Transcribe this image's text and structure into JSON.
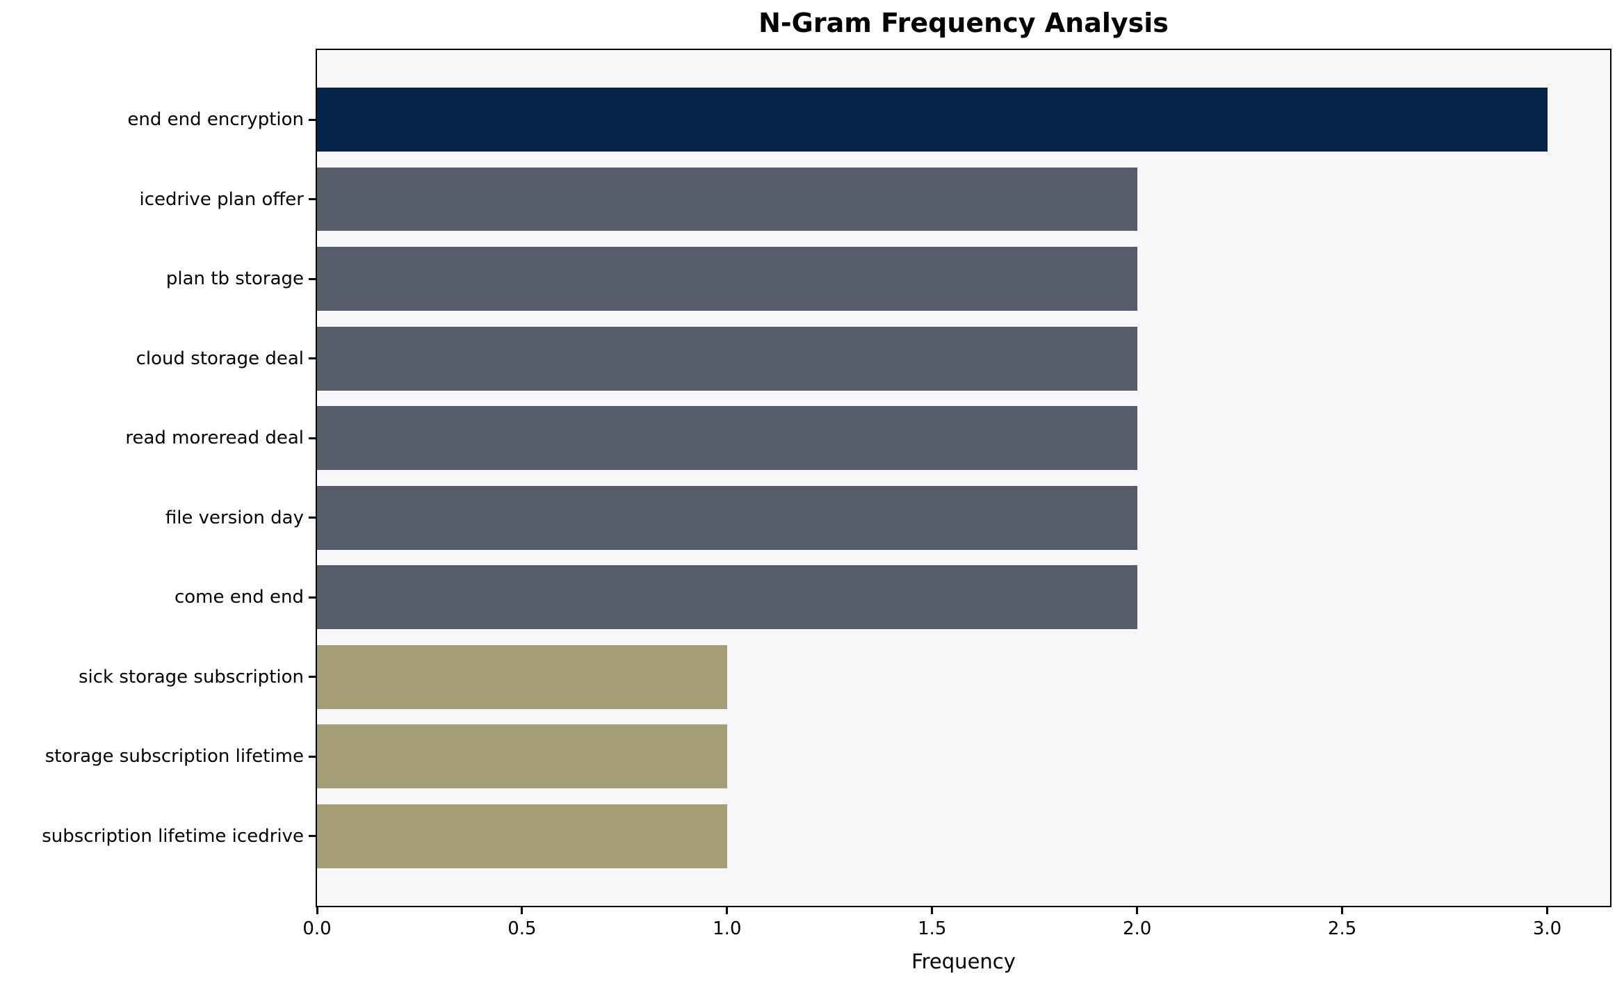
{
  "chart_data": {
    "type": "bar",
    "orientation": "horizontal",
    "title": "N-Gram Frequency Analysis",
    "xlabel": "Frequency",
    "ylabel": "",
    "categories": [
      "end end encryption",
      "icedrive plan offer",
      "plan tb storage",
      "cloud storage deal",
      "read moreread deal",
      "file version day",
      "come end end",
      "sick storage subscription",
      "storage subscription lifetime",
      "subscription lifetime icedrive"
    ],
    "values": [
      3,
      2,
      2,
      2,
      2,
      2,
      2,
      1,
      1,
      1
    ],
    "bar_colors": [
      "#032349",
      "#575c6b",
      "#575c6b",
      "#575c6b",
      "#575c6b",
      "#575c6b",
      "#575c6b",
      "#a59d73",
      "#a59d73",
      "#a59d73"
    ],
    "xlim": [
      0,
      3.15
    ],
    "xticks": [
      0.0,
      0.5,
      1.0,
      1.5,
      2.0,
      2.5,
      3.0
    ],
    "xtick_labels": [
      "0.0",
      "0.5",
      "1.0",
      "1.5",
      "2.0",
      "2.5",
      "3.0"
    ],
    "grid": false,
    "legend": "none",
    "colors": {
      "value3": "#032349",
      "value2": "#575c6b",
      "value1": "#a59d73",
      "plot_background": "#f7f7f9",
      "figure_background": "#ffffff",
      "spine": "#000000",
      "text": "#000000"
    }
  }
}
